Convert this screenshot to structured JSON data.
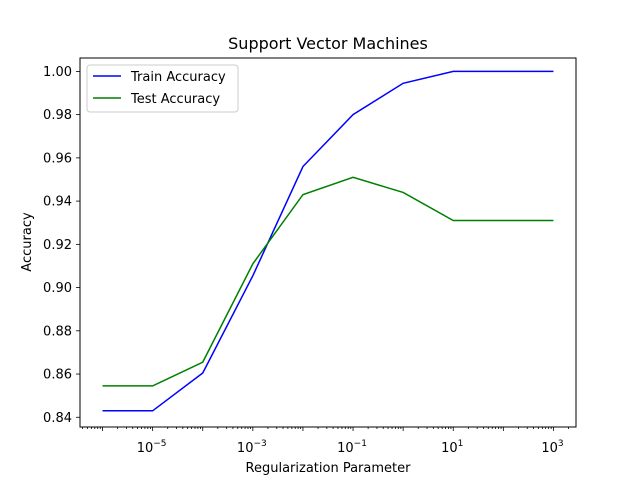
{
  "chart_data": {
    "type": "line",
    "title": "Support Vector Machines",
    "xlabel": "Regularization Parameter",
    "ylabel": "Accuracy",
    "xscale": "log",
    "xlim": [
      1e-06,
      1000
    ],
    "ylim": [
      0.8355,
      1.0062
    ],
    "grid": false,
    "legend_position": "upper-left",
    "x": [
      1e-06,
      1e-05,
      0.0001,
      0.001,
      0.01,
      0.1,
      1,
      10,
      100,
      1000
    ],
    "series": [
      {
        "name": "Train Accuracy",
        "color": "#0000ff",
        "values": [
          0.843,
          0.843,
          0.8605,
          0.9055,
          0.956,
          0.98,
          0.9945,
          1.0,
          1.0,
          1.0
        ]
      },
      {
        "name": "Test Accuracy",
        "color": "#008000",
        "values": [
          0.8545,
          0.8545,
          0.8655,
          0.911,
          0.943,
          0.951,
          0.944,
          0.931,
          0.931,
          0.931
        ]
      }
    ],
    "y_ticks": [
      {
        "value": 0.84,
        "label": "0.84"
      },
      {
        "value": 0.86,
        "label": "0.86"
      },
      {
        "value": 0.88,
        "label": "0.88"
      },
      {
        "value": 0.9,
        "label": "0.90"
      },
      {
        "value": 0.92,
        "label": "0.92"
      },
      {
        "value": 0.94,
        "label": "0.94"
      },
      {
        "value": 0.96,
        "label": "0.96"
      },
      {
        "value": 0.98,
        "label": "0.98"
      },
      {
        "value": 1.0,
        "label": "1.00"
      }
    ],
    "x_ticks": [
      {
        "value": 1e-05,
        "base": "10",
        "exponent": "−5"
      },
      {
        "value": 0.001,
        "base": "10",
        "exponent": "−3"
      },
      {
        "value": 0.1,
        "base": "10",
        "exponent": "−1"
      },
      {
        "value": 10,
        "base": "10",
        "exponent": "1"
      },
      {
        "value": 1000,
        "base": "10",
        "exponent": "3"
      }
    ]
  }
}
